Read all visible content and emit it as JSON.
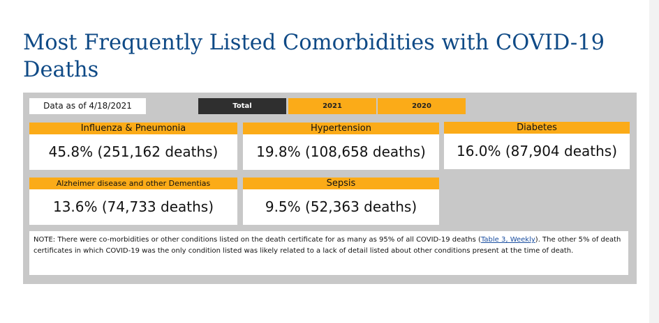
{
  "page": {
    "title": "Most Frequently Listed Comorbidities with COVID-19 Deaths"
  },
  "dashboard": {
    "date_label": "Data as of 4/18/2021",
    "tabs": [
      {
        "label": "Total",
        "active": true
      },
      {
        "label": "2021",
        "active": false
      },
      {
        "label": "2020",
        "active": false
      }
    ],
    "cards": [
      {
        "label": "Influenza & Pneumonia",
        "value": "45.8% (251,162 deaths)"
      },
      {
        "label": "Hypertension",
        "value": "19.8% (108,658 deaths)"
      },
      {
        "label": "Diabetes",
        "value": "16.0% (87,904 deaths)"
      },
      {
        "label": "Alzheimer disease and other Dementias",
        "value": "13.6% (74,733 deaths)"
      },
      {
        "label": "Sepsis",
        "value": "9.5% (52,363 deaths)"
      }
    ],
    "note": {
      "text_before": "NOTE: There were co-morbidities or other conditions listed on the death certificate for as many as 95% of all COVID-19 deaths (",
      "link": "Table 3, Weekly",
      "text_after": "). The other 5% of death certificates in which COVID-19 was the only condition listed was likely related to a lack of detail listed about other conditions present at the time of death."
    },
    "colors": {
      "accent": "#fbab18",
      "active_tab": "#2f2f2f",
      "panel": "#c8c8c8",
      "title": "#0f4a86"
    }
  }
}
